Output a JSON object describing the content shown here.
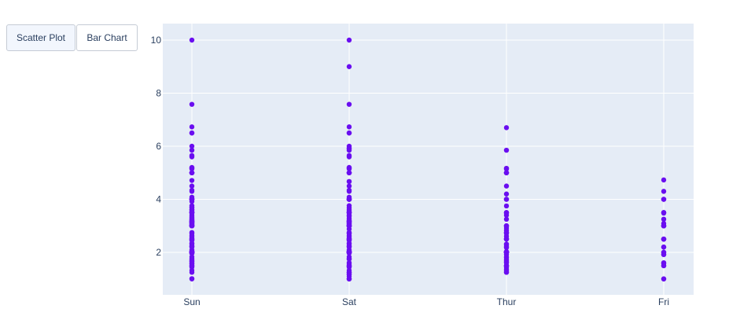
{
  "buttons": [
    {
      "label": "Scatter Plot",
      "active": true
    },
    {
      "label": "Bar Chart",
      "active": false
    }
  ],
  "colors": {
    "plot_bg": "#e5ecf6",
    "grid": "#ffffff",
    "marker": "#6a0ef0",
    "tick_text": "#2a3f5f"
  },
  "chart_data": {
    "type": "scatter",
    "title": "",
    "xlabel": "",
    "ylabel": "",
    "categories": [
      "Sun",
      "Sat",
      "Thur",
      "Fri"
    ],
    "ylim": [
      0.4,
      10.6
    ],
    "yticks": [
      2,
      4,
      6,
      8,
      10
    ],
    "grid": true,
    "legend": false,
    "series": [
      {
        "name": "Sun",
        "x": "Sun",
        "values": [
          1.01,
          1.66,
          3.5,
          3.31,
          3.61,
          4.71,
          2.0,
          3.12,
          1.96,
          3.23,
          1.71,
          5.0,
          1.57,
          3.0,
          3.02,
          3.92,
          1.67,
          3.71,
          3.5,
          3.35,
          4.08,
          2.75,
          2.23,
          7.58,
          3.18,
          2.34,
          2.0,
          2.0,
          4.3,
          3.0,
          1.45,
          2.5,
          3.0,
          2.45,
          3.27,
          3.6,
          2.0,
          3.07,
          2.31,
          5.0,
          2.24,
          2.54,
          3.06,
          1.32,
          5.6,
          3.0,
          5.0,
          6.0,
          2.05,
          3.0,
          2.5,
          2.6,
          5.2,
          1.56,
          4.34,
          3.51,
          3.0,
          1.5,
          1.76,
          6.73,
          3.21,
          2.0,
          1.98,
          3.76,
          2.64,
          3.15,
          2.47,
          1.0,
          2.01,
          2.09,
          1.97,
          3.0,
          3.14,
          5.0,
          2.2,
          1.25,
          3.08,
          4.0,
          3.0,
          2.71,
          3.0,
          3.4,
          1.83,
          5.0,
          2.03,
          5.17,
          2.0,
          4.0,
          5.85,
          3.0,
          1.5,
          6.5,
          3.48,
          2.24,
          4.5,
          1.61,
          2.0,
          10.0,
          3.16,
          5.15,
          3.18,
          4.0,
          3.11,
          2.0,
          2.0,
          4.0,
          3.55,
          3.68,
          5.65,
          3.5,
          6.5,
          3.0,
          5.0,
          3.5,
          2.0,
          3.5,
          4.0,
          1.5
        ]
      },
      {
        "name": "Sat",
        "x": "Sat",
        "values": [
          3.35,
          4.08,
          2.75,
          2.23,
          7.58,
          3.18,
          2.34,
          2.0,
          2.0,
          4.3,
          3.0,
          1.45,
          2.5,
          3.0,
          2.45,
          3.27,
          3.6,
          2.0,
          3.07,
          2.31,
          5.0,
          2.24,
          2.54,
          3.06,
          1.32,
          5.6,
          3.0,
          5.0,
          6.0,
          2.05,
          3.0,
          2.5,
          2.6,
          5.2,
          1.56,
          4.34,
          3.51,
          3.0,
          1.5,
          1.76,
          6.73,
          3.21,
          2.0,
          1.98,
          3.76,
          2.64,
          3.15,
          2.47,
          1.0,
          2.01,
          2.09,
          1.97,
          3.0,
          3.14,
          5.0,
          2.2,
          1.25,
          3.08,
          4.0,
          3.0,
          2.71,
          3.0,
          3.4,
          1.83,
          5.0,
          2.03,
          5.17,
          2.0,
          4.0,
          5.85,
          3.0,
          1.5,
          6.5,
          3.48,
          2.24,
          4.5,
          1.61,
          2.0,
          10.0,
          3.16,
          5.15,
          3.18,
          4.0,
          3.11,
          2.0,
          2.0,
          4.0,
          3.55,
          3.68,
          5.65,
          3.5,
          6.5,
          3.0,
          5.0,
          3.5,
          2.0,
          3.5,
          4.0,
          1.5,
          9.0,
          1.25,
          1.17,
          4.67,
          5.92,
          2.0,
          1.75,
          3.0,
          1.1,
          2.0,
          2.5,
          3.0,
          3.5,
          1.0,
          3.0,
          2.72,
          2.88,
          2.0,
          3.0,
          3.39,
          1.47,
          3.0,
          1.25,
          1.0,
          1.17,
          4.67,
          5.92,
          2.0,
          2.0,
          1.75,
          3.0
        ]
      },
      {
        "name": "Thur",
        "x": "Thur",
        "values": [
          4.0,
          3.0,
          2.71,
          3.0,
          3.4,
          1.83,
          5.0,
          2.03,
          5.17,
          2.0,
          4.0,
          5.85,
          3.0,
          1.5,
          1.8,
          2.92,
          2.31,
          1.68,
          2.5,
          2.0,
          2.52,
          4.2,
          1.48,
          2.0,
          2.0,
          2.18,
          1.5,
          2.83,
          1.5,
          2.0,
          3.25,
          1.25,
          2.0,
          2.0,
          2.0,
          2.75,
          3.5,
          6.7,
          5.0,
          5.0,
          2.3,
          1.5,
          1.36,
          1.63,
          1.73,
          2.0,
          2.5,
          2.0,
          2.74,
          2.0,
          2.0,
          5.14,
          5.0,
          3.75,
          2.61,
          2.0,
          3.5,
          2.5,
          2.0,
          2.0,
          3.0,
          3.48,
          2.24,
          4.5,
          1.61,
          2.0,
          1.44,
          2.2,
          1.92,
          1.5,
          1.25,
          1.3
        ]
      },
      {
        "name": "Fri",
        "x": "Fri",
        "values": [
          3.0,
          3.5,
          1.0,
          4.3,
          3.25,
          4.73,
          4.0,
          1.5,
          3.0,
          1.5,
          2.5,
          3.0,
          2.2,
          3.48,
          1.92,
          3.0,
          1.58,
          2.5,
          2.0,
          3.0,
          2.0,
          4.0,
          3.09,
          1.61,
          1.0,
          2.5,
          3.5,
          3.0,
          1.92,
          2.2,
          1.5,
          2.5
        ]
      }
    ]
  }
}
